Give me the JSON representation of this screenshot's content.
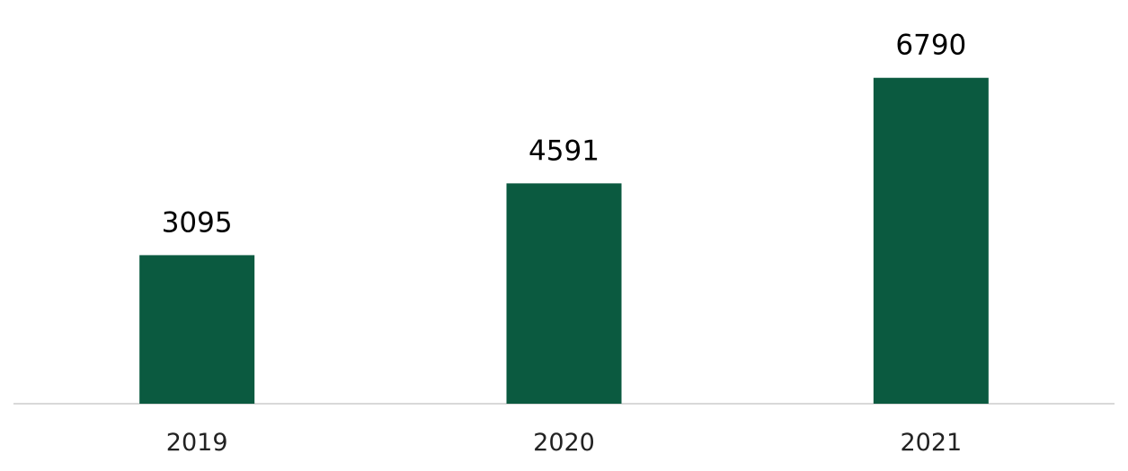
{
  "chart_data": {
    "type": "bar",
    "categories": [
      "2019",
      "2020",
      "2021"
    ],
    "values": [
      3095,
      4591,
      6790
    ],
    "data_labels": [
      "3095",
      "4591",
      "6790"
    ],
    "title": "",
    "xlabel": "",
    "ylabel": "",
    "grid": false,
    "legend": "none",
    "ylim": [
      0,
      7500
    ],
    "colors": {
      "bar": "#0b5a40",
      "axis": "#d9d9d9"
    }
  }
}
